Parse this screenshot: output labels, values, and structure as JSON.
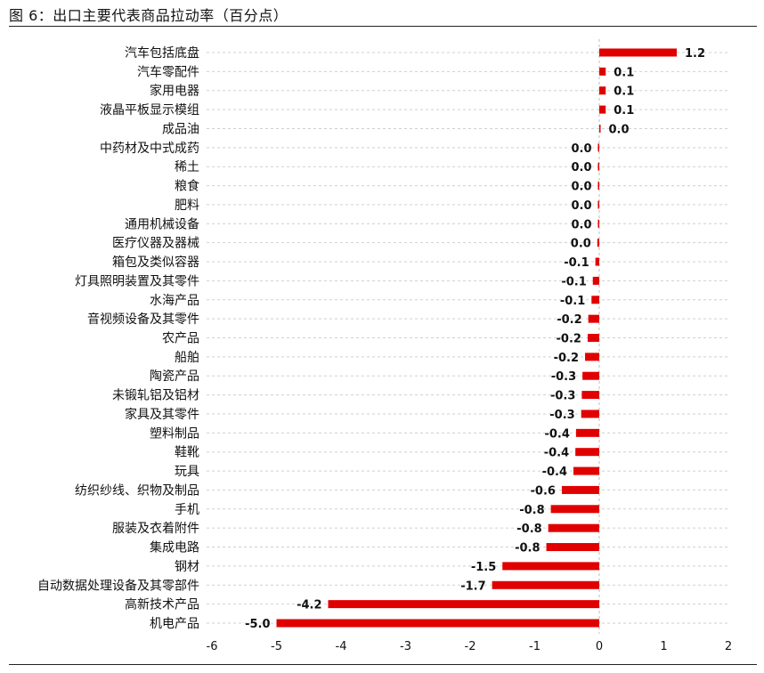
{
  "title": "图 6：出口主要代表商品拉动率（百分点）",
  "chart_data": {
    "type": "bar",
    "orientation": "horizontal",
    "xlim": [
      -6,
      2
    ],
    "x_ticks": [
      "-6",
      "-5",
      "-4",
      "-3",
      "-2",
      "-1",
      "0",
      "1",
      "2"
    ],
    "grid": "horizontal dashed",
    "bar_color": "#e00000",
    "categories": [
      "汽车包括底盘",
      "汽车零配件",
      "家用电器",
      "液晶平板显示模组",
      "成品油",
      "中药材及中式成药",
      "稀土",
      "粮食",
      "肥料",
      "通用机械设备",
      "医疗仪器及器械",
      "箱包及类似容器",
      "灯具照明装置及其零件",
      "水海产品",
      "音视频设备及其零件",
      "农产品",
      "船舶",
      "陶瓷产品",
      "未锻轧铝及铝材",
      "家具及其零件",
      "塑料制品",
      "鞋靴",
      "玩具",
      "纺织纱线、织物及制品",
      "手机",
      "服装及衣着附件",
      "集成电路",
      "钢材",
      "自动数据处理设备及其零部件",
      "高新技术产品",
      "机电产品"
    ],
    "values": [
      1.2,
      0.1,
      0.1,
      0.1,
      0.02,
      -0.005,
      -0.005,
      -0.01,
      -0.01,
      -0.02,
      -0.03,
      -0.06,
      -0.1,
      -0.12,
      -0.17,
      -0.18,
      -0.22,
      -0.26,
      -0.27,
      -0.28,
      -0.36,
      -0.37,
      -0.4,
      -0.58,
      -0.75,
      -0.79,
      -0.82,
      -1.5,
      -1.66,
      -4.2,
      -5.0
    ],
    "labels": [
      "1.2",
      "0.1",
      "0.1",
      "0.1",
      "0.0",
      "0.0",
      "0.0",
      "0.0",
      "0.0",
      "0.0",
      "0.0",
      "-0.1",
      "-0.1",
      "-0.1",
      "-0.2",
      "-0.2",
      "-0.2",
      "-0.3",
      "-0.3",
      "-0.3",
      "-0.4",
      "-0.4",
      "-0.4",
      "-0.6",
      "-0.8",
      "-0.8",
      "-0.8",
      "-1.5",
      "-1.7",
      "-4.2",
      "-5.0"
    ]
  }
}
